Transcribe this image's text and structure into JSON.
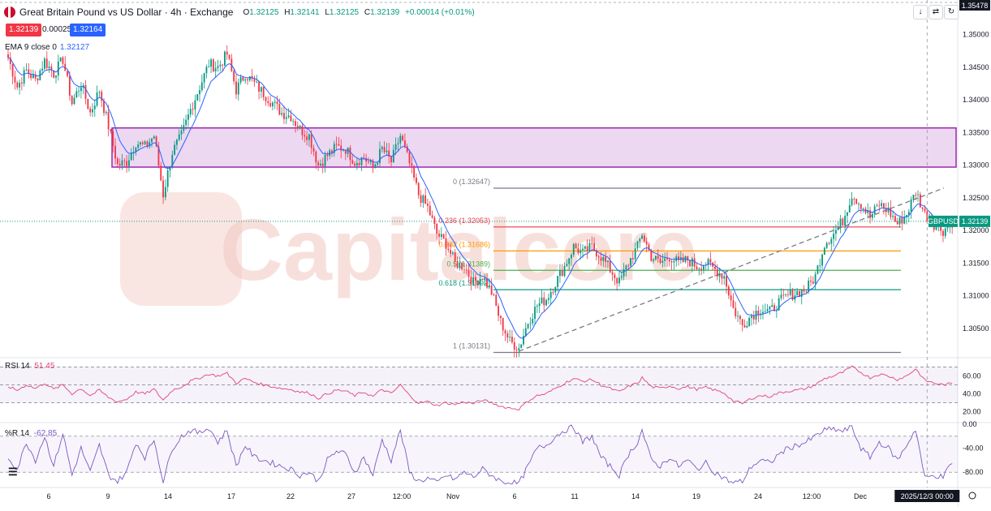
{
  "header": {
    "title": "Great Britain Pound vs US Dollar · 4h · Exchange",
    "o_label": "O",
    "o": "1.32125",
    "h_label": "H",
    "h": "1.32141",
    "l_label": "L",
    "l": "1.32125",
    "c_label": "C",
    "c": "1.32139",
    "change": "+0.00014 (+0.01%)",
    "sell_price": "1.32139",
    "spread": "0.00025",
    "buy_price": "1.32164"
  },
  "ema": {
    "label": "EMA 9 close 0",
    "value": "1.32127",
    "color": "#2962ff"
  },
  "toolbar": {
    "arrow_icon": "down-arrow-icon",
    "collapse_icon": "collapse-icon",
    "refresh_icon": "refresh-icon"
  },
  "colors": {
    "up": "#089981",
    "down": "#f23645",
    "zone": "#9c27b0",
    "rsi": "#e0457b",
    "wr": "#7e57c2",
    "watermark": "#f2c7c0"
  },
  "chart_data": [
    {
      "type": "candlestick",
      "title": "Great Britain Pound vs US Dollar · 4h · Exchange",
      "symbol": "GBPUSD",
      "last_price": 1.32139,
      "ylim": [
        1.301,
        1.3548
      ],
      "y_ticks": [
        "1.35478",
        "1.35000",
        "1.34500",
        "1.34000",
        "1.33500",
        "1.33000",
        "1.32500",
        "1.32000",
        "1.31500",
        "1.31000",
        "1.30500"
      ],
      "x_tick_labels": [
        "6",
        "9",
        "14",
        "17",
        "22",
        "27",
        "12:00",
        "Nov",
        "6",
        "11",
        "14",
        "19",
        "24",
        "12:00",
        "Dec"
      ],
      "crosshair_label": "2025/12/3 00:00",
      "resistance_zone": [
        1.3297,
        1.3357
      ],
      "fibonacci": {
        "levels": [
          {
            "label": "0 (1.32647)",
            "value": 1.32647
          },
          {
            "label": "0.236 (1.32053)",
            "value": 1.32053
          },
          {
            "label": "0.382 (1.31686)",
            "value": 1.31686
          },
          {
            "label": "0.5 (1.31389)",
            "value": 1.31389
          },
          {
            "label": "0.618 (1.31092)",
            "value": 1.31092
          },
          {
            "label": "1 (1.30131)",
            "value": 1.30131
          }
        ]
      },
      "trendline": [
        1.3015,
        1.3265
      ],
      "close_path": [
        [
          0,
          1.3465
        ],
        [
          4,
          1.342
        ],
        [
          8,
          1.3445
        ],
        [
          12,
          1.343
        ],
        [
          16,
          1.346
        ],
        [
          20,
          1.344
        ],
        [
          24,
          1.3462
        ],
        [
          28,
          1.3395
        ],
        [
          32,
          1.3425
        ],
        [
          36,
          1.338
        ],
        [
          40,
          1.3415
        ],
        [
          44,
          1.336
        ],
        [
          48,
          1.33
        ],
        [
          52,
          1.3305
        ],
        [
          56,
          1.3335
        ],
        [
          60,
          1.3328
        ],
        [
          64,
          1.3345
        ],
        [
          68,
          1.3255
        ],
        [
          72,
          1.332
        ],
        [
          76,
          1.3345
        ],
        [
          80,
          1.3385
        ],
        [
          84,
          1.342
        ],
        [
          88,
          1.3455
        ],
        [
          92,
          1.345
        ],
        [
          96,
          1.347
        ],
        [
          100,
          1.3415
        ],
        [
          104,
          1.344
        ],
        [
          108,
          1.3425
        ],
        [
          112,
          1.341
        ],
        [
          116,
          1.3395
        ],
        [
          120,
          1.338
        ],
        [
          124,
          1.3375
        ],
        [
          128,
          1.3355
        ],
        [
          132,
          1.3345
        ],
        [
          136,
          1.33
        ],
        [
          140,
          1.3315
        ],
        [
          144,
          1.3328
        ],
        [
          148,
          1.3325
        ],
        [
          152,
          1.3305
        ],
        [
          156,
          1.3312
        ],
        [
          160,
          1.3295
        ],
        [
          164,
          1.3325
        ],
        [
          168,
          1.3305
        ],
        [
          172,
          1.3345
        ],
        [
          176,
          1.3302
        ],
        [
          180,
          1.3255
        ],
        [
          184,
          1.3235
        ],
        [
          188,
          1.3195
        ],
        [
          192,
          1.318
        ],
        [
          196,
          1.315
        ],
        [
          200,
          1.3145
        ],
        [
          204,
          1.312
        ],
        [
          208,
          1.313
        ],
        [
          212,
          1.3105
        ],
        [
          216,
          1.306
        ],
        [
          220,
          1.303
        ],
        [
          224,
          1.302
        ],
        [
          228,
          1.306
        ],
        [
          232,
          1.3085
        ],
        [
          236,
          1.3095
        ],
        [
          240,
          1.312
        ],
        [
          244,
          1.3145
        ],
        [
          248,
          1.3175
        ],
        [
          252,
          1.3165
        ],
        [
          256,
          1.3175
        ],
        [
          260,
          1.316
        ],
        [
          264,
          1.314
        ],
        [
          268,
          1.312
        ],
        [
          272,
          1.315
        ],
        [
          276,
          1.3175
        ],
        [
          278,
          1.3195
        ],
        [
          282,
          1.316
        ],
        [
          286,
          1.315
        ],
        [
          290,
          1.316
        ],
        [
          294,
          1.315
        ],
        [
          298,
          1.3155
        ],
        [
          302,
          1.3145
        ],
        [
          306,
          1.315
        ],
        [
          310,
          1.314
        ],
        [
          314,
          1.313
        ],
        [
          318,
          1.308
        ],
        [
          322,
          1.3055
        ],
        [
          326,
          1.307
        ],
        [
          330,
          1.308
        ],
        [
          334,
          1.3075
        ],
        [
          338,
          1.309
        ],
        [
          342,
          1.31
        ],
        [
          346,
          1.3105
        ],
        [
          350,
          1.311
        ],
        [
          354,
          1.313
        ],
        [
          358,
          1.318
        ],
        [
          362,
          1.3195
        ],
        [
          366,
          1.3215
        ],
        [
          370,
          1.3255
        ],
        [
          374,
          1.324
        ],
        [
          378,
          1.322
        ],
        [
          382,
          1.324
        ],
        [
          386,
          1.323
        ],
        [
          390,
          1.321
        ],
        [
          394,
          1.3225
        ],
        [
          398,
          1.326
        ],
        [
          402,
          1.3225
        ],
        [
          406,
          1.321
        ],
        [
          410,
          1.32
        ],
        [
          414,
          1.3213
        ]
      ],
      "candles_total": 415,
      "crosshair_index": 403
    },
    {
      "type": "line",
      "name": "RSI 14",
      "last_value": 51.45,
      "ylim": [
        15,
        75
      ],
      "y_ticks": [
        "60.00",
        "40.00",
        "20.00"
      ],
      "band": [
        30,
        70
      ],
      "dashed_levels": [
        50
      ],
      "path": [
        [
          0,
          48
        ],
        [
          4,
          44
        ],
        [
          8,
          50
        ],
        [
          12,
          46
        ],
        [
          16,
          52
        ],
        [
          20,
          45
        ],
        [
          24,
          50
        ],
        [
          28,
          40
        ],
        [
          32,
          46
        ],
        [
          36,
          38
        ],
        [
          40,
          44
        ],
        [
          44,
          36
        ],
        [
          48,
          31
        ],
        [
          52,
          34
        ],
        [
          56,
          42
        ],
        [
          60,
          40
        ],
        [
          64,
          45
        ],
        [
          68,
          33
        ],
        [
          72,
          44
        ],
        [
          76,
          48
        ],
        [
          80,
          54
        ],
        [
          84,
          58
        ],
        [
          88,
          62
        ],
        [
          92,
          60
        ],
        [
          96,
          63
        ],
        [
          100,
          52
        ],
        [
          104,
          57
        ],
        [
          108,
          53
        ],
        [
          112,
          50
        ],
        [
          116,
          48
        ],
        [
          120,
          46
        ],
        [
          124,
          45
        ],
        [
          128,
          42
        ],
        [
          132,
          41
        ],
        [
          136,
          35
        ],
        [
          140,
          40
        ],
        [
          144,
          44
        ],
        [
          148,
          43
        ],
        [
          152,
          38
        ],
        [
          156,
          42
        ],
        [
          160,
          37
        ],
        [
          164,
          45
        ],
        [
          168,
          40
        ],
        [
          172,
          50
        ],
        [
          176,
          38
        ],
        [
          180,
          30
        ],
        [
          184,
          31
        ],
        [
          188,
          27
        ],
        [
          192,
          30
        ],
        [
          196,
          28
        ],
        [
          200,
          31
        ],
        [
          204,
          29
        ],
        [
          208,
          33
        ],
        [
          212,
          30
        ],
        [
          216,
          26
        ],
        [
          220,
          24
        ],
        [
          224,
          23
        ],
        [
          228,
          32
        ],
        [
          232,
          38
        ],
        [
          236,
          40
        ],
        [
          240,
          46
        ],
        [
          244,
          52
        ],
        [
          248,
          57
        ],
        [
          252,
          54
        ],
        [
          256,
          56
        ],
        [
          260,
          50
        ],
        [
          264,
          46
        ],
        [
          268,
          42
        ],
        [
          272,
          48
        ],
        [
          276,
          52
        ],
        [
          278,
          58
        ],
        [
          282,
          48
        ],
        [
          286,
          46
        ],
        [
          290,
          49
        ],
        [
          294,
          46
        ],
        [
          298,
          48
        ],
        [
          302,
          45
        ],
        [
          306,
          47
        ],
        [
          310,
          44
        ],
        [
          314,
          41
        ],
        [
          318,
          32
        ],
        [
          322,
          29
        ],
        [
          326,
          35
        ],
        [
          330,
          38
        ],
        [
          334,
          37
        ],
        [
          338,
          41
        ],
        [
          342,
          43
        ],
        [
          346,
          44
        ],
        [
          350,
          46
        ],
        [
          354,
          50
        ],
        [
          358,
          57
        ],
        [
          362,
          60
        ],
        [
          366,
          64
        ],
        [
          370,
          70
        ],
        [
          374,
          64
        ],
        [
          378,
          58
        ],
        [
          382,
          62
        ],
        [
          386,
          60
        ],
        [
          390,
          56
        ],
        [
          394,
          60
        ],
        [
          398,
          68
        ],
        [
          402,
          55
        ],
        [
          406,
          52
        ],
        [
          410,
          50
        ],
        [
          414,
          51.45
        ]
      ]
    },
    {
      "type": "line",
      "name": "%R 14",
      "last_value": -62.85,
      "ylim": [
        -100,
        0
      ],
      "y_ticks": [
        "0.00",
        "-40.00",
        "-80.00"
      ],
      "dashed_levels": [
        -20,
        -80
      ],
      "path": [
        [
          0,
          -55
        ],
        [
          4,
          -75
        ],
        [
          8,
          -30
        ],
        [
          12,
          -60
        ],
        [
          16,
          -20
        ],
        [
          20,
          -70
        ],
        [
          24,
          -15
        ],
        [
          28,
          -85
        ],
        [
          32,
          -40
        ],
        [
          36,
          -80
        ],
        [
          40,
          -35
        ],
        [
          44,
          -85
        ],
        [
          48,
          -95
        ],
        [
          52,
          -80
        ],
        [
          56,
          -30
        ],
        [
          60,
          -55
        ],
        [
          64,
          -25
        ],
        [
          68,
          -95
        ],
        [
          72,
          -40
        ],
        [
          76,
          -20
        ],
        [
          80,
          -10
        ],
        [
          84,
          -15
        ],
        [
          88,
          -5
        ],
        [
          92,
          -30
        ],
        [
          96,
          -10
        ],
        [
          100,
          -70
        ],
        [
          104,
          -35
        ],
        [
          108,
          -55
        ],
        [
          112,
          -60
        ],
        [
          116,
          -65
        ],
        [
          120,
          -70
        ],
        [
          124,
          -75
        ],
        [
          128,
          -85
        ],
        [
          132,
          -80
        ],
        [
          136,
          -95
        ],
        [
          140,
          -60
        ],
        [
          144,
          -45
        ],
        [
          148,
          -50
        ],
        [
          152,
          -80
        ],
        [
          156,
          -55
        ],
        [
          160,
          -85
        ],
        [
          164,
          -25
        ],
        [
          168,
          -60
        ],
        [
          172,
          -10
        ],
        [
          176,
          -80
        ],
        [
          180,
          -95
        ],
        [
          184,
          -90
        ],
        [
          188,
          -98
        ],
        [
          192,
          -85
        ],
        [
          196,
          -92
        ],
        [
          200,
          -80
        ],
        [
          204,
          -88
        ],
        [
          208,
          -75
        ],
        [
          212,
          -85
        ],
        [
          216,
          -95
        ],
        [
          220,
          -97
        ],
        [
          224,
          -99
        ],
        [
          228,
          -70
        ],
        [
          232,
          -40
        ],
        [
          236,
          -35
        ],
        [
          240,
          -20
        ],
        [
          244,
          -10
        ],
        [
          248,
          -5
        ],
        [
          252,
          -30
        ],
        [
          256,
          -20
        ],
        [
          260,
          -55
        ],
        [
          264,
          -70
        ],
        [
          268,
          -85
        ],
        [
          272,
          -50
        ],
        [
          276,
          -30
        ],
        [
          278,
          -10
        ],
        [
          282,
          -60
        ],
        [
          286,
          -70
        ],
        [
          290,
          -55
        ],
        [
          294,
          -70
        ],
        [
          298,
          -60
        ],
        [
          302,
          -75
        ],
        [
          306,
          -65
        ],
        [
          310,
          -80
        ],
        [
          314,
          -90
        ],
        [
          318,
          -98
        ],
        [
          322,
          -95
        ],
        [
          326,
          -70
        ],
        [
          330,
          -60
        ],
        [
          334,
          -65
        ],
        [
          338,
          -50
        ],
        [
          342,
          -40
        ],
        [
          346,
          -35
        ],
        [
          350,
          -30
        ],
        [
          354,
          -20
        ],
        [
          358,
          -10
        ],
        [
          362,
          -8
        ],
        [
          366,
          -12
        ],
        [
          370,
          -5
        ],
        [
          374,
          -40
        ],
        [
          378,
          -55
        ],
        [
          382,
          -30
        ],
        [
          386,
          -40
        ],
        [
          390,
          -60
        ],
        [
          394,
          -35
        ],
        [
          398,
          -8
        ],
        [
          402,
          -90
        ],
        [
          406,
          -85
        ],
        [
          410,
          -88
        ],
        [
          414,
          -62.85
        ]
      ]
    }
  ],
  "watermark_text": "Capitalcore"
}
